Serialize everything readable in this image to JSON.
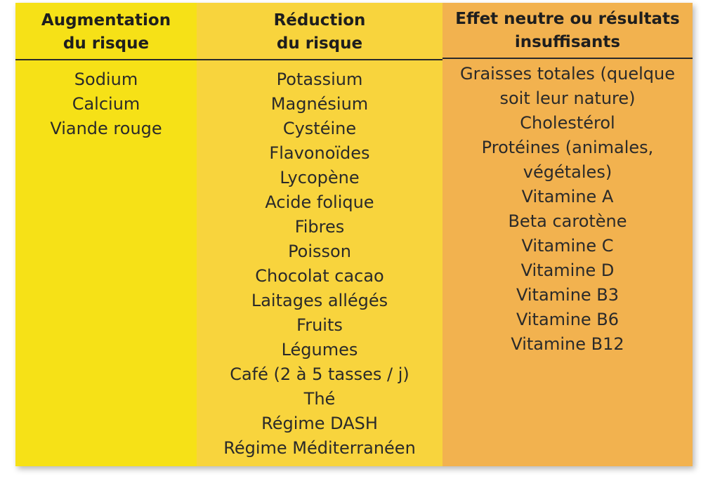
{
  "columns": [
    {
      "header": "Augmentation\ndu risque",
      "items": [
        "Sodium",
        "Calcium",
        "Viande rouge"
      ]
    },
    {
      "header": "Réduction\ndu risque",
      "items": [
        "Potassium",
        "Magnésium",
        "Cystéine",
        "Flavonoïdes",
        "Lycopène",
        "Acide folique",
        "Fibres",
        "Poisson",
        "Chocolat cacao",
        "Laitages allégés",
        "Fruits",
        "Légumes",
        "Café (2 à 5 tasses / j)",
        "Thé",
        "Régime DASH",
        "Régime Méditerranéen"
      ]
    },
    {
      "header": "Effet neutre ou résultats\ninsuffisants",
      "items": [
        "Graisses totales (quelque",
        "soit leur nature)",
        "Cholestérol",
        "Protéines (animales,",
        "végétales)",
        "Vitamine A",
        "Beta carotène",
        "Vitamine C",
        "Vitamine D",
        "Vitamine B3",
        "Vitamine B6",
        "Vitamine B12"
      ]
    }
  ],
  "colors": {
    "column_1_bg": "#f6e117",
    "column_2_bg": "#f8d43d",
    "column_3_bg": "#f2b24f",
    "header_rule": "#2a2a2a"
  }
}
